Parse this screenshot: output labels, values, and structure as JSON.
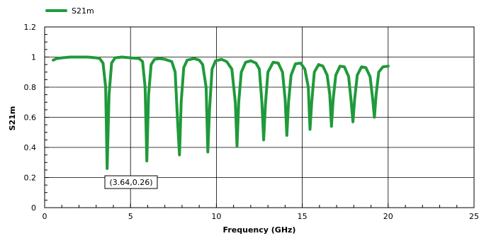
{
  "chart_data": {
    "type": "line",
    "title": "",
    "xlabel": "Frequency (GHz)",
    "ylabel": "S21m",
    "xlim": [
      0,
      25
    ],
    "ylim": [
      0,
      1.2
    ],
    "xticks": [
      0,
      5,
      10,
      15,
      20,
      25
    ],
    "yticks": [
      0,
      0.2,
      0.4,
      0.6,
      0.8,
      1,
      1.2
    ],
    "grid": true,
    "legend": {
      "position": "top-left"
    },
    "series": [
      {
        "name": "S21m",
        "color": "#1f9a3a",
        "x": [
          0.5,
          0.7,
          1.0,
          1.5,
          2.0,
          2.5,
          3.0,
          3.2,
          3.4,
          3.55,
          3.64,
          3.75,
          3.9,
          4.1,
          4.5,
          5.0,
          5.5,
          5.7,
          5.85,
          5.95,
          6.05,
          6.2,
          6.4,
          6.7,
          7.0,
          7.4,
          7.6,
          7.75,
          7.85,
          7.95,
          8.1,
          8.3,
          8.7,
          9.0,
          9.2,
          9.4,
          9.5,
          9.6,
          9.75,
          9.95,
          10.3,
          10.6,
          10.9,
          11.1,
          11.2,
          11.3,
          11.45,
          11.7,
          12.0,
          12.3,
          12.5,
          12.65,
          12.75,
          12.85,
          13.0,
          13.3,
          13.6,
          13.85,
          14.0,
          14.1,
          14.2,
          14.35,
          14.6,
          14.9,
          15.15,
          15.35,
          15.45,
          15.55,
          15.7,
          15.95,
          16.2,
          16.45,
          16.6,
          16.7,
          16.8,
          16.95,
          17.2,
          17.45,
          17.7,
          17.85,
          17.95,
          18.05,
          18.2,
          18.45,
          18.7,
          18.95,
          19.1,
          19.2,
          19.3,
          19.45,
          19.7,
          20.0
        ],
        "y": [
          0.98,
          0.99,
          0.995,
          1.0,
          1.0,
          1.0,
          0.995,
          0.99,
          0.96,
          0.8,
          0.26,
          0.75,
          0.96,
          0.995,
          1.0,
          0.995,
          0.99,
          0.97,
          0.8,
          0.31,
          0.75,
          0.95,
          0.985,
          0.99,
          0.985,
          0.97,
          0.9,
          0.55,
          0.35,
          0.7,
          0.93,
          0.98,
          0.99,
          0.98,
          0.95,
          0.8,
          0.37,
          0.65,
          0.92,
          0.975,
          0.985,
          0.97,
          0.92,
          0.7,
          0.41,
          0.7,
          0.9,
          0.965,
          0.975,
          0.96,
          0.92,
          0.7,
          0.45,
          0.68,
          0.9,
          0.965,
          0.96,
          0.9,
          0.72,
          0.48,
          0.7,
          0.88,
          0.955,
          0.96,
          0.92,
          0.8,
          0.52,
          0.7,
          0.9,
          0.95,
          0.94,
          0.88,
          0.75,
          0.54,
          0.72,
          0.88,
          0.94,
          0.935,
          0.87,
          0.7,
          0.57,
          0.72,
          0.88,
          0.935,
          0.93,
          0.87,
          0.72,
          0.6,
          0.75,
          0.9,
          0.935,
          0.94
        ]
      }
    ],
    "annotations": [
      {
        "x": 3.64,
        "y": 0.26,
        "text": "(3.64,0.26)"
      }
    ]
  }
}
